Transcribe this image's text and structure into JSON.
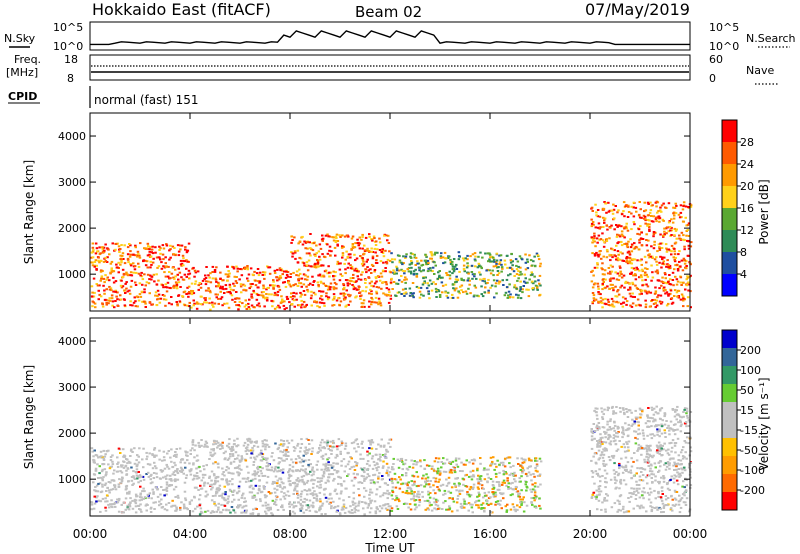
{
  "header": {
    "station": "Hokkaido East (fitACF)",
    "beam": "Beam 02",
    "date": "07/May/2019"
  },
  "top_panels": {
    "nsky_label": "N.Sky",
    "nsky_ticks": [
      "10^5",
      "10^0"
    ],
    "nsearch_label": "N.Search",
    "nsearch_ticks": [
      "10^5",
      "10^0"
    ],
    "freq_label": "Freq.",
    "freq_unit": "[MHz]",
    "freq_ticks": [
      "18",
      "8"
    ],
    "nave_label": "Nave",
    "nave_ticks": [
      "60",
      "0"
    ],
    "cpid_label": "CPID",
    "cpid_text": "normal (fast) 151"
  },
  "colors": {
    "power_scale": [
      "#0000ff",
      "#1f4fa0",
      "#2e8b57",
      "#5aa832",
      "#ffd11a",
      "#ff9a00",
      "#ff5a00",
      "#ff0000"
    ],
    "velocity_scale": [
      "#ff0000",
      "#ff6a00",
      "#ff9c00",
      "#ffc000",
      "#c0c0c0",
      "#c0c0c0",
      "#66cc33",
      "#339966",
      "#336699",
      "#0000cc"
    ]
  },
  "chart_data": [
    {
      "type": "heatmap",
      "title": "",
      "ylabel": "Slant Range [km]",
      "xlabel": "",
      "ylim": [
        200,
        4500
      ],
      "yticks": [
        "4000",
        "3000",
        "2000",
        "1000"
      ],
      "x_ticks": [
        "00:00",
        "04:00",
        "08:00",
        "12:00",
        "16:00",
        "20:00",
        "00:00"
      ],
      "colorbar": {
        "label": "Power [dB]",
        "range": [
          0,
          32
        ],
        "ticks": [
          "28",
          "24",
          "20",
          "16",
          "12",
          "8",
          "4"
        ]
      },
      "echo_regions": [
        {
          "t_start": "00:00",
          "t_end": "04:00",
          "range_km": [
            300,
            1700
          ],
          "level": "high"
        },
        {
          "t_start": "04:00",
          "t_end": "08:00",
          "range_km": [
            250,
            1200
          ],
          "level": "high"
        },
        {
          "t_start": "08:00",
          "t_end": "12:00",
          "range_km": [
            300,
            1900
          ],
          "level": "high"
        },
        {
          "t_start": "12:00",
          "t_end": "18:00",
          "range_km": [
            500,
            1500
          ],
          "level": "medium"
        },
        {
          "t_start": "20:00",
          "t_end": "00:00",
          "range_km": [
            300,
            2600
          ],
          "level": "high"
        }
      ]
    },
    {
      "type": "heatmap",
      "title": "",
      "ylabel": "Slant Range [km]",
      "xlabel": "Time UT",
      "ylim": [
        200,
        4500
      ],
      "yticks": [
        "4000",
        "3000",
        "2000",
        "1000"
      ],
      "x_ticks": [
        "00:00",
        "04:00",
        "08:00",
        "12:00",
        "16:00",
        "20:00",
        "00:00"
      ],
      "colorbar": {
        "label": "Velocity [m s⁻¹]",
        "ticks": [
          "200",
          "100",
          "50",
          "15",
          "-15",
          "-50",
          "-100",
          "-200"
        ]
      },
      "echo_regions": [
        {
          "t_start": "00:00",
          "t_end": "04:00",
          "range_km": [
            300,
            1700
          ],
          "level": "ground"
        },
        {
          "t_start": "04:00",
          "t_end": "12:00",
          "range_km": [
            250,
            1900
          ],
          "level": "ground"
        },
        {
          "t_start": "12:00",
          "t_end": "18:00",
          "range_km": [
            300,
            1500
          ],
          "level": "mixed"
        },
        {
          "t_start": "20:00",
          "t_end": "00:00",
          "range_km": [
            300,
            2600
          ],
          "level": "ground"
        }
      ]
    }
  ]
}
